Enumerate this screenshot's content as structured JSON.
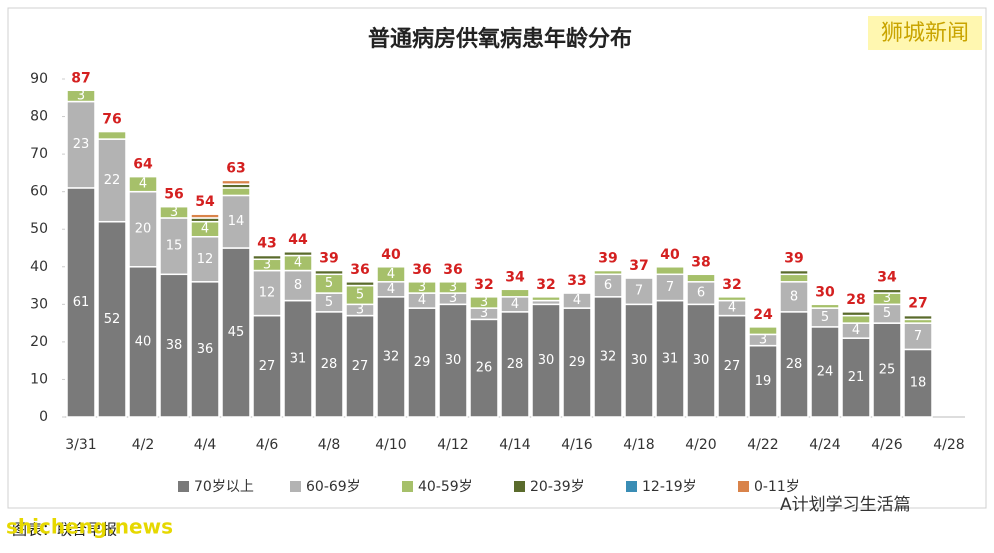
{
  "chart_data": {
    "type": "stacked_bar",
    "title": "普通病房供氧病患年龄分布",
    "annotations": [
      "狮城新闻",
      "图表：联合早报",
      "shicheng.news",
      "A计划学习生活篇"
    ],
    "categories": [
      "3/31",
      null,
      "4/2",
      null,
      "4/4",
      null,
      "4/6",
      null,
      "4/8",
      null,
      "4/10",
      null,
      "4/12",
      null,
      "4/14",
      null,
      "4/16",
      null,
      "4/18",
      null,
      "4/20",
      null,
      "4/22",
      null,
      "4/24",
      null,
      "4/26",
      null,
      "4/28"
    ],
    "ylim": [
      0,
      90
    ],
    "yticks": [
      0,
      10,
      20,
      30,
      40,
      50,
      60,
      70,
      80,
      90
    ],
    "grid": false,
    "totals": [
      87,
      76,
      64,
      56,
      54,
      63,
      43,
      44,
      39,
      36,
      40,
      36,
      36,
      32,
      34,
      32,
      33,
      39,
      37,
      40,
      38,
      32,
      24,
      39,
      30,
      28,
      34,
      27,
      null
    ],
    "series": [
      {
        "name": "70岁以上",
        "color": "#7a7a7a",
        "values": [
          61,
          52,
          40,
          38,
          36,
          45,
          27,
          31,
          28,
          27,
          32,
          29,
          30,
          26,
          28,
          30,
          29,
          32,
          30,
          31,
          30,
          27,
          19,
          28,
          24,
          21,
          25,
          18,
          null
        ]
      },
      {
        "name": "60-69岁",
        "color": "#b3b3b3",
        "values": [
          23,
          22,
          20,
          15,
          12,
          14,
          12,
          8,
          5,
          3,
          4,
          4,
          3,
          3,
          4,
          1,
          4,
          6,
          7,
          7,
          6,
          4,
          3,
          8,
          5,
          4,
          5,
          7,
          null
        ]
      },
      {
        "name": "40-59岁",
        "color": "#a6c06a",
        "values": [
          3,
          2,
          4,
          3,
          4,
          2,
          3,
          4,
          5,
          5,
          4,
          3,
          3,
          3,
          2,
          1,
          0,
          1,
          0,
          2,
          2,
          1,
          2,
          2,
          1,
          2,
          3,
          1,
          null
        ]
      },
      {
        "name": "20-39岁",
        "color": "#5a6b2c",
        "values": [
          0,
          0,
          0,
          0,
          1,
          1,
          1,
          1,
          1,
          1,
          0,
          0,
          0,
          0,
          0,
          0,
          0,
          0,
          0,
          0,
          0,
          0,
          0,
          1,
          0,
          1,
          1,
          1,
          null
        ]
      },
      {
        "name": "12-19岁",
        "color": "#3a8db5",
        "values": [
          0,
          0,
          0,
          0,
          0,
          0,
          0,
          0,
          0,
          0,
          0,
          0,
          0,
          0,
          0,
          0,
          0,
          0,
          0,
          0,
          0,
          0,
          0,
          0,
          0,
          0,
          0,
          0,
          null
        ]
      },
      {
        "name": "0-11岁",
        "color": "#d9834a",
        "values": [
          0,
          0,
          0,
          0,
          1,
          1,
          0,
          0,
          0,
          0,
          0,
          0,
          0,
          0,
          0,
          0,
          0,
          0,
          0,
          0,
          0,
          0,
          0,
          0,
          0,
          0,
          0,
          0,
          null
        ]
      }
    ]
  }
}
